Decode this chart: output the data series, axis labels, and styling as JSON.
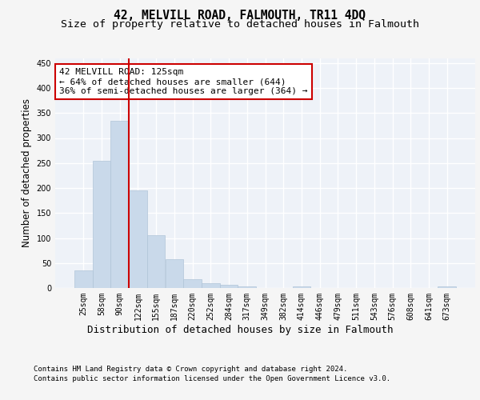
{
  "title": "42, MELVILL ROAD, FALMOUTH, TR11 4DQ",
  "subtitle": "Size of property relative to detached houses in Falmouth",
  "xlabel": "Distribution of detached houses by size in Falmouth",
  "ylabel": "Number of detached properties",
  "categories": [
    "25sqm",
    "58sqm",
    "90sqm",
    "122sqm",
    "155sqm",
    "187sqm",
    "220sqm",
    "252sqm",
    "284sqm",
    "317sqm",
    "349sqm",
    "382sqm",
    "414sqm",
    "446sqm",
    "479sqm",
    "511sqm",
    "543sqm",
    "576sqm",
    "608sqm",
    "641sqm",
    "673sqm"
  ],
  "values": [
    35,
    255,
    335,
    195,
    105,
    57,
    18,
    10,
    7,
    4,
    0,
    0,
    3,
    0,
    0,
    0,
    0,
    0,
    0,
    0,
    3
  ],
  "bar_color": "#c9d9ea",
  "bar_edge_color": "#b0c4d8",
  "vline_color": "#cc0000",
  "annotation_text": "42 MELVILL ROAD: 125sqm\n← 64% of detached houses are smaller (644)\n36% of semi-detached houses are larger (364) →",
  "annotation_box_color": "#ffffff",
  "annotation_box_edge_color": "#cc0000",
  "ylim": [
    0,
    460
  ],
  "yticks": [
    0,
    50,
    100,
    150,
    200,
    250,
    300,
    350,
    400,
    450
  ],
  "background_color": "#eef2f8",
  "grid_color": "#ffffff",
  "fig_background_color": "#f5f5f5",
  "footer_line1": "Contains HM Land Registry data © Crown copyright and database right 2024.",
  "footer_line2": "Contains public sector information licensed under the Open Government Licence v3.0.",
  "title_fontsize": 10.5,
  "subtitle_fontsize": 9.5,
  "xlabel_fontsize": 9,
  "ylabel_fontsize": 8.5,
  "tick_fontsize": 7,
  "annotation_fontsize": 8,
  "footer_fontsize": 6.5
}
